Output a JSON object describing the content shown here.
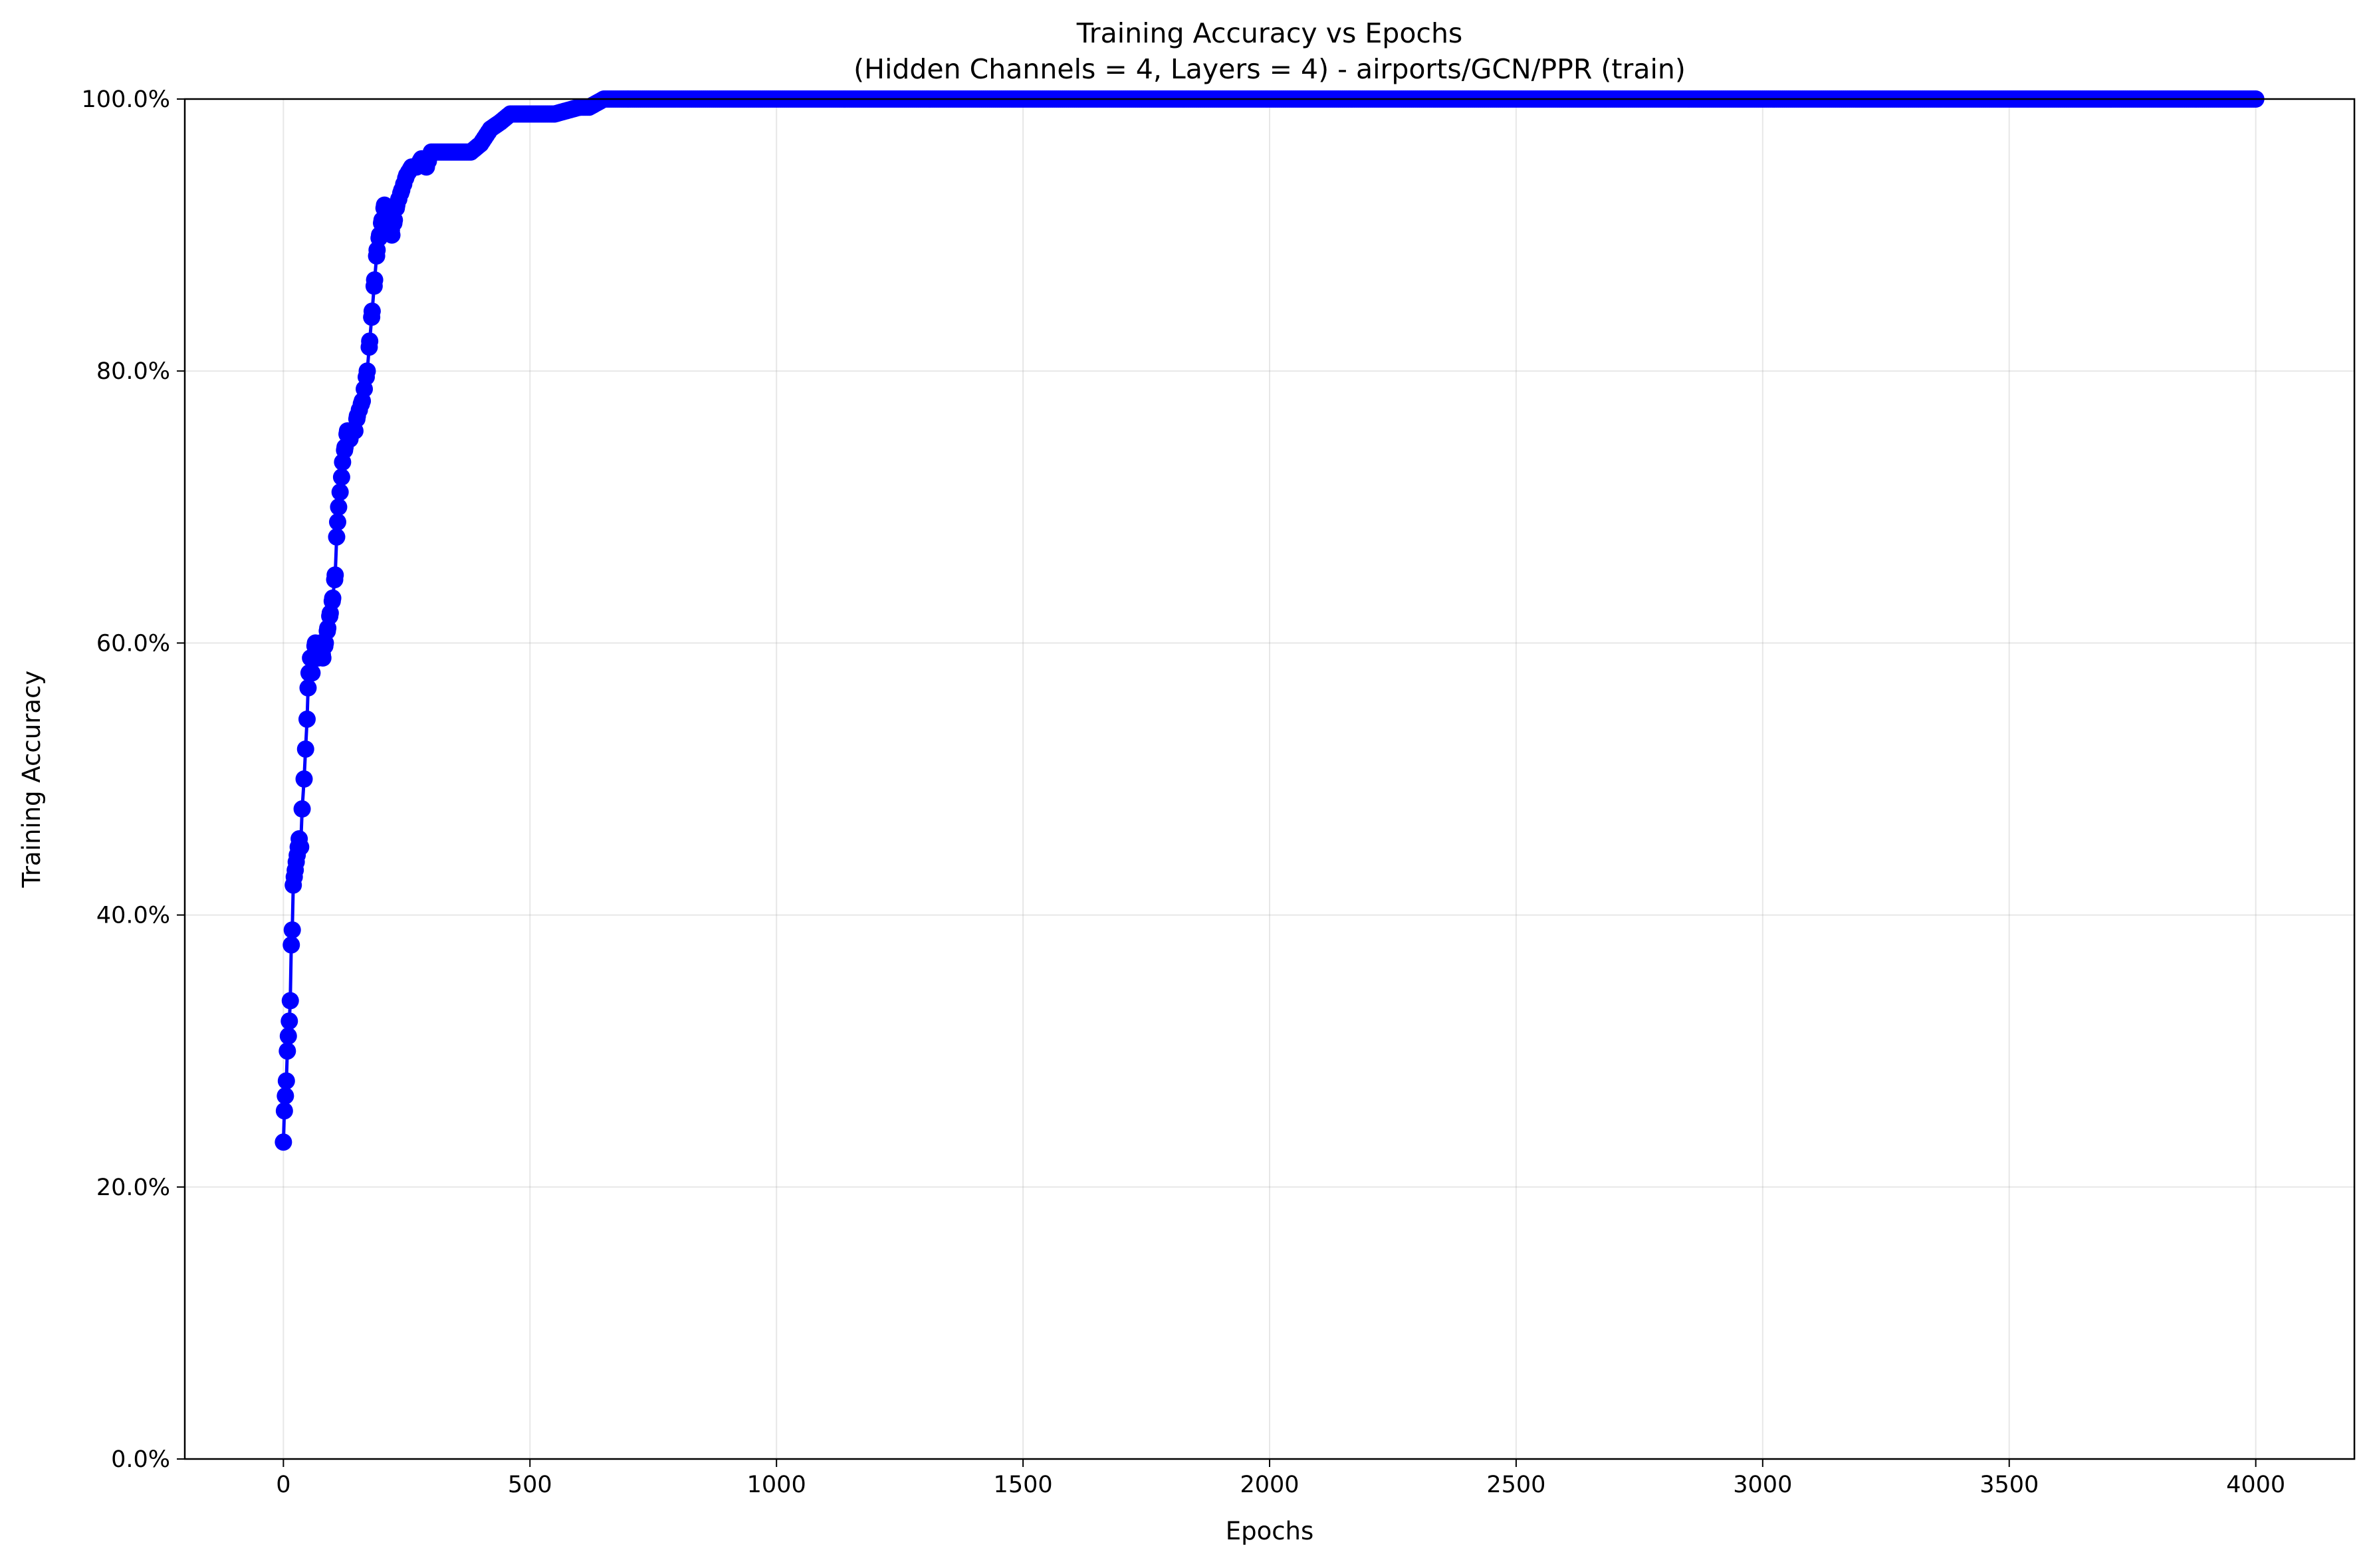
{
  "chart_data": {
    "type": "line",
    "title": "Training Accuracy vs Epochs",
    "subtitle": "(Hidden Channels = 4, Layers = 4) - airports/GCN/PPR (train)",
    "xlabel": "Epochs",
    "ylabel": "Training Accuracy",
    "xlim": [
      -200,
      4200
    ],
    "ylim": [
      0,
      100
    ],
    "x_ticks": [
      0,
      500,
      1000,
      1500,
      2000,
      2500,
      3000,
      3500,
      4000
    ],
    "x_tick_labels": [
      "0",
      "500",
      "1000",
      "1500",
      "2000",
      "2500",
      "3000",
      "3500",
      "4000"
    ],
    "y_ticks": [
      0,
      20,
      40,
      60,
      80,
      100
    ],
    "y_tick_labels": [
      "0.0%",
      "20.0%",
      "40.0%",
      "60.0%",
      "80.0%",
      "100.0%"
    ],
    "grid": true,
    "legend": "none",
    "series_color": "#0000ff",
    "marker": "circle",
    "series": [
      {
        "x": [
          0,
          2,
          4,
          6,
          8,
          10,
          12,
          14,
          16,
          18,
          20,
          22,
          24,
          26,
          28,
          30,
          32,
          35,
          38,
          42,
          45,
          48,
          50,
          52,
          55,
          58,
          60,
          65,
          70,
          75,
          80,
          85,
          90,
          95,
          100,
          105,
          108,
          110,
          112,
          115,
          118,
          120,
          125,
          130,
          135,
          140,
          145,
          150,
          160,
          170,
          175,
          180,
          185,
          190,
          195,
          200,
          205,
          210,
          215,
          220,
          225,
          230,
          240,
          250,
          260,
          270,
          280,
          290,
          300,
          320,
          340,
          360,
          380,
          400,
          420,
          440,
          460,
          480,
          500,
          550,
          600,
          620,
          650,
          700,
          800,
          1000,
          1500,
          2000,
          2500,
          3000,
          3500,
          4000
        ],
        "y": [
          23.3,
          25.6,
          26.7,
          27.8,
          30.0,
          31.1,
          32.2,
          33.7,
          37.8,
          38.9,
          42.2,
          42.8,
          43.3,
          43.9,
          44.4,
          45.0,
          45.6,
          45.0,
          47.8,
          50.0,
          52.2,
          54.4,
          56.7,
          57.8,
          58.9,
          57.8,
          58.9,
          60.0,
          58.9,
          60.0,
          58.9,
          60.0,
          61.1,
          62.2,
          63.3,
          65.0,
          67.8,
          68.9,
          70.0,
          71.1,
          72.2,
          73.3,
          74.4,
          75.6,
          75.0,
          75.6,
          75.6,
          76.7,
          77.8,
          80.0,
          82.2,
          84.4,
          86.7,
          88.9,
          90.0,
          91.1,
          92.2,
          91.1,
          91.7,
          90.0,
          91.1,
          92.2,
          93.3,
          94.4,
          95.0,
          95.0,
          95.6,
          95.0,
          96.1,
          96.1,
          96.1,
          96.1,
          96.1,
          96.7,
          97.8,
          98.3,
          98.9,
          98.9,
          98.9,
          98.9,
          99.4,
          99.4,
          100.0,
          100.0,
          100.0,
          100.0,
          100.0,
          100.0,
          100.0,
          100.0,
          100.0,
          100.0
        ]
      }
    ]
  }
}
